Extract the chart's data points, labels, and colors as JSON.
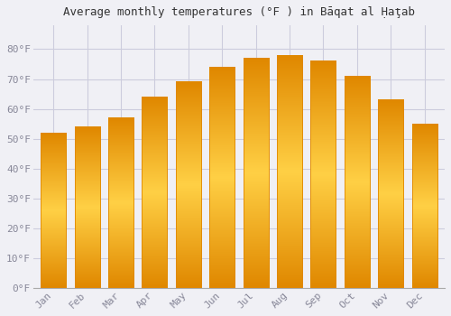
{
  "title": "Average monthly temperatures (°F ) in Bāqat al Ḥaţab",
  "months": [
    "Jan",
    "Feb",
    "Mar",
    "Apr",
    "May",
    "Jun",
    "Jul",
    "Aug",
    "Sep",
    "Oct",
    "Nov",
    "Dec"
  ],
  "values": [
    52,
    54,
    57,
    64,
    69,
    74,
    77,
    78,
    76,
    71,
    63,
    55
  ],
  "bar_color_center": "#FFD045",
  "bar_color_edge": "#E08800",
  "ylim": [
    0,
    88
  ],
  "yticks": [
    0,
    10,
    20,
    30,
    40,
    50,
    60,
    70,
    80
  ],
  "ytick_labels": [
    "0°F",
    "10°F",
    "20°F",
    "30°F",
    "40°F",
    "50°F",
    "60°F",
    "70°F",
    "80°F"
  ],
  "background_color": "#f0f0f5",
  "plot_bg_color": "#f0f0f5",
  "grid_color": "#ccccdd",
  "title_fontsize": 9,
  "tick_fontsize": 8,
  "bar_width": 0.75,
  "tick_color": "#888899"
}
